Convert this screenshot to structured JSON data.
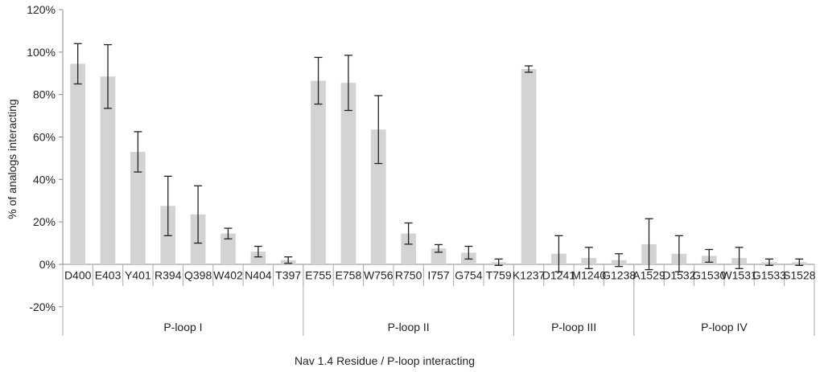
{
  "chart_data": {
    "type": "bar",
    "ylabel": "% of analogs interacting",
    "xlabel": "Nav 1.4 Residue / P-loop interacting",
    "ylim": [
      -20,
      120
    ],
    "yticks": [
      -20,
      0,
      20,
      40,
      60,
      80,
      100,
      120
    ],
    "ytick_labels": [
      "-20%",
      "0%",
      "20%",
      "40%",
      "60%",
      "80%",
      "100%",
      "120%"
    ],
    "grid": false,
    "bar_color": "#d3d3d3",
    "error_bar_color": "#222222",
    "categories": [
      "D400",
      "E403",
      "Y401",
      "R394",
      "Q398",
      "W402",
      "N404",
      "T397",
      "E755",
      "E758",
      "W756",
      "R750",
      "I757",
      "G754",
      "T759",
      "K1237",
      "D1241",
      "M1240",
      "G1238",
      "A1529",
      "D1532",
      "G1530",
      "W1531",
      "G1533",
      "S1528"
    ],
    "values": [
      94.5,
      88.5,
      53,
      27.5,
      23.5,
      14.5,
      6,
      2,
      86.5,
      85.5,
      63.5,
      14.5,
      7.5,
      5.5,
      1,
      92,
      5,
      3,
      2,
      9.5,
      5,
      4,
      3,
      1,
      1
    ],
    "errors": [
      9.5,
      15,
      9.5,
      14,
      13.5,
      2.5,
      2.5,
      1.5,
      11,
      13,
      16,
      5,
      1.8,
      3,
      1.5,
      1.5,
      8.5,
      5,
      3,
      12,
      8.5,
      3,
      5,
      1.5,
      1.5
    ],
    "groups": [
      {
        "label": "P-loop I",
        "count": 8
      },
      {
        "label": "P-loop II",
        "count": 7
      },
      {
        "label": "P-loop III",
        "count": 4
      },
      {
        "label": "P-loop IV",
        "count": 6
      }
    ]
  }
}
